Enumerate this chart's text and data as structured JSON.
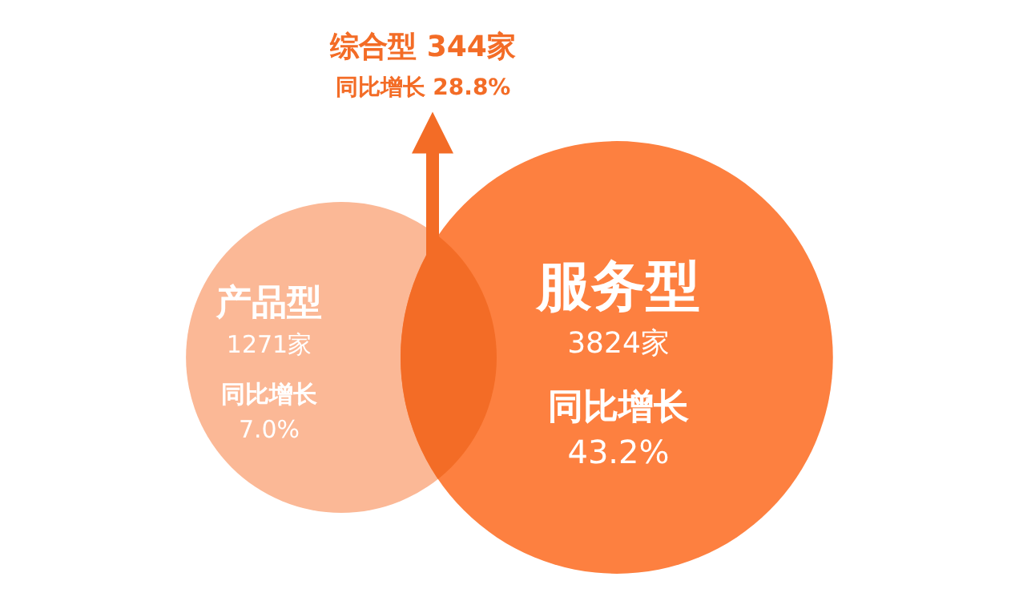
{
  "chart_data": {
    "type": "other",
    "categories": [
      "产品型",
      "服务型",
      "综合型"
    ],
    "values": [
      1271,
      3824,
      344
    ],
    "value_labels": [
      "1271家",
      "3824家",
      "344家"
    ],
    "colors": [
      "#fbb896",
      "#fd8040",
      "#f36c26"
    ],
    "annotations": [
      "同比增长 7.0%",
      "同比增长 43.2%",
      "同比增长 28.8%"
    ]
  }
}
